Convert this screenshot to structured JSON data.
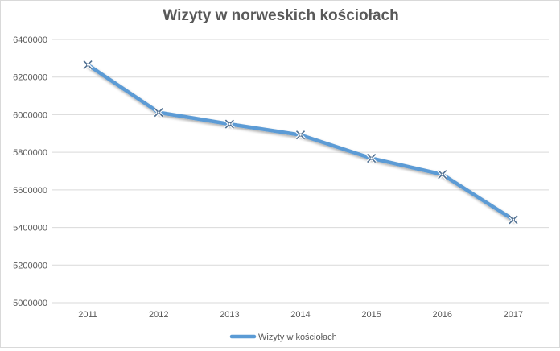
{
  "chart_data": {
    "type": "line",
    "title": "Wizyty w norweskich kościołach",
    "xlabel": "",
    "ylabel": "",
    "categories": [
      "2011",
      "2012",
      "2013",
      "2014",
      "2015",
      "2016",
      "2017"
    ],
    "ylim": [
      5000000,
      6400000
    ],
    "yticks": [
      5000000,
      5200000,
      5400000,
      5600000,
      5800000,
      6000000,
      6200000,
      6400000
    ],
    "ytick_labels": [
      "5000000",
      "5200000",
      "5400000",
      "5600000",
      "5800000",
      "6000000",
      "6200000",
      "6400000"
    ],
    "grid": true,
    "legend_position": "bottom",
    "series": [
      {
        "name": "Wizyty w kościołach",
        "color": "#5b9bd5",
        "marker": "x",
        "values": [
          6265000,
          6012000,
          5950000,
          5892000,
          5768000,
          5682000,
          5442000
        ]
      }
    ]
  }
}
